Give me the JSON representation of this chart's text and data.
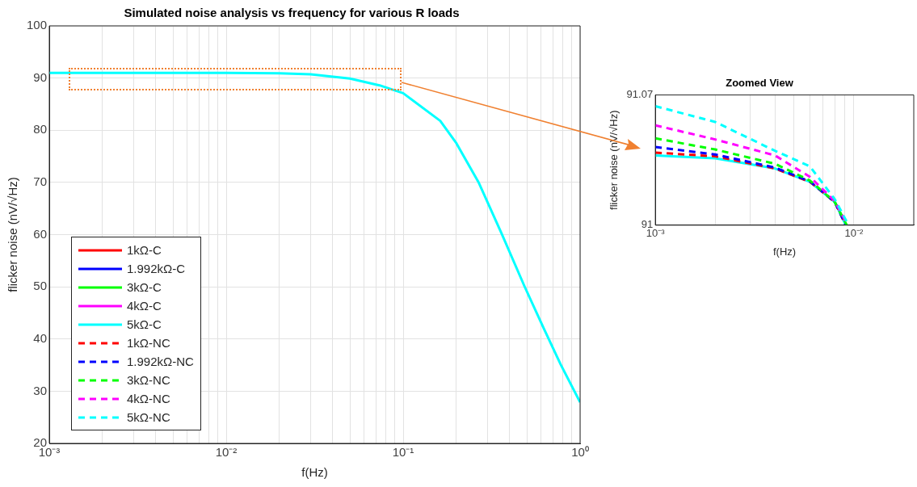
{
  "chart_data": [
    {
      "type": "line",
      "title": "Simulated noise analysis vs frequency for various R loads",
      "xlabel": "f(Hz)",
      "ylabel": "flicker noise (nV/√Hz)",
      "log": "x",
      "grid": true,
      "legend": "bottom left",
      "x": [
        0.001,
        0.002,
        0.005,
        0.01,
        0.02,
        0.03,
        0.05,
        0.0736,
        0.1,
        0.162,
        0.2,
        0.268,
        0.36,
        0.485,
        0.624,
        0.777,
        1
      ],
      "xlim": [
        0.001,
        1
      ],
      "xticks": [
        {
          "value": 0.001,
          "label": "10⁻³"
        },
        {
          "value": 0.002,
          "label": null
        },
        {
          "value": 0.003,
          "label": null
        },
        {
          "value": 0.004,
          "label": null
        },
        {
          "value": 0.005,
          "label": null
        },
        {
          "value": 0.006,
          "label": null
        },
        {
          "value": 0.007,
          "label": null
        },
        {
          "value": 0.008,
          "label": null
        },
        {
          "value": 0.009,
          "label": null
        },
        {
          "value": 0.01,
          "label": "10⁻²"
        },
        {
          "value": 0.02,
          "label": null
        },
        {
          "value": 0.03,
          "label": null
        },
        {
          "value": 0.04,
          "label": null
        },
        {
          "value": 0.05,
          "label": null
        },
        {
          "value": 0.06,
          "label": null
        },
        {
          "value": 0.07,
          "label": null
        },
        {
          "value": 0.08,
          "label": null
        },
        {
          "value": 0.09,
          "label": null
        },
        {
          "value": 0.1,
          "label": "10⁻¹"
        },
        {
          "value": 0.2,
          "label": null
        },
        {
          "value": 0.3,
          "label": null
        },
        {
          "value": 0.4,
          "label": null
        },
        {
          "value": 0.5,
          "label": null
        },
        {
          "value": 0.6,
          "label": null
        },
        {
          "value": 0.7,
          "label": null
        },
        {
          "value": 0.8,
          "label": null
        },
        {
          "value": 0.9,
          "label": null
        },
        {
          "value": 1,
          "label": "10⁰"
        }
      ],
      "ylim": [
        20,
        100
      ],
      "yticks": [
        20,
        30,
        40,
        50,
        60,
        70,
        80,
        90,
        100
      ],
      "series": [
        {
          "name": "1kΩ-C",
          "color": "#ff0000",
          "line_style": "solid",
          "values": [
            null,
            null,
            null,
            null,
            null,
            null,
            null,
            null,
            null,
            null,
            null,
            null,
            null,
            null,
            null,
            null,
            null
          ]
        },
        {
          "name": "1.992kΩ-C",
          "color": "#0000ff",
          "line_style": "solid",
          "values": [
            null,
            null,
            null,
            null,
            null,
            null,
            null,
            null,
            null,
            null,
            null,
            null,
            null,
            null,
            null,
            null,
            null
          ]
        },
        {
          "name": "3kΩ-C",
          "color": "#00ff00",
          "line_style": "solid",
          "values": [
            null,
            null,
            null,
            null,
            null,
            null,
            null,
            null,
            null,
            null,
            null,
            null,
            null,
            null,
            null,
            null,
            null
          ]
        },
        {
          "name": "4kΩ-C",
          "color": "#ff00ff",
          "line_style": "solid",
          "values": [
            null,
            null,
            null,
            null,
            null,
            null,
            null,
            null,
            null,
            null,
            null,
            null,
            null,
            null,
            null,
            null,
            null
          ]
        },
        {
          "name": "5kΩ-C",
          "color": "#00ffff",
          "line_style": "solid",
          "values": [
            91,
            91,
            91,
            91,
            90.9,
            90.7,
            89.9,
            88.6,
            87.1,
            81.8,
            77.5,
            69.9,
            60.2,
            50.1,
            42.0,
            35.1,
            27.9
          ]
        },
        {
          "name": "1kΩ-NC",
          "color": "#ff0000",
          "line_style": "dashed",
          "values": [
            null,
            null,
            null,
            null,
            null,
            null,
            null,
            null,
            null,
            null,
            null,
            null,
            null,
            null,
            null,
            null,
            null
          ]
        },
        {
          "name": "1.992kΩ-NC",
          "color": "#0000ff",
          "line_style": "dashed",
          "values": [
            null,
            null,
            null,
            null,
            null,
            null,
            null,
            null,
            null,
            null,
            null,
            null,
            null,
            null,
            null,
            null,
            null
          ]
        },
        {
          "name": "3kΩ-NC",
          "color": "#00ff00",
          "line_style": "dashed",
          "values": [
            null,
            null,
            null,
            null,
            null,
            null,
            null,
            null,
            null,
            null,
            null,
            null,
            null,
            null,
            null,
            null,
            null
          ]
        },
        {
          "name": "4kΩ-NC",
          "color": "#ff00ff",
          "line_style": "dashed",
          "values": [
            null,
            null,
            null,
            null,
            null,
            null,
            null,
            null,
            null,
            null,
            null,
            null,
            null,
            null,
            null,
            null,
            null
          ]
        },
        {
          "name": "5kΩ-NC",
          "color": "#00ffff",
          "line_style": "dashed",
          "values": [
            null,
            null,
            null,
            null,
            null,
            null,
            null,
            null,
            null,
            null,
            null,
            null,
            null,
            null,
            null,
            null,
            null
          ]
        }
      ]
    },
    {
      "type": "line",
      "title": "Zoomed View",
      "xlabel": "f(Hz)",
      "ylabel": "flicker noise (nV/√Hz)",
      "log": "x",
      "grid": "x",
      "xlim": [
        0.001,
        0.02
      ],
      "xticks": [
        {
          "value": 0.001,
          "label": "10⁻³"
        },
        {
          "value": 0.002,
          "label": null
        },
        {
          "value": 0.003,
          "label": null
        },
        {
          "value": 0.004,
          "label": null
        },
        {
          "value": 0.005,
          "label": null
        },
        {
          "value": 0.006,
          "label": null
        },
        {
          "value": 0.007,
          "label": null
        },
        {
          "value": 0.008,
          "label": null
        },
        {
          "value": 0.009,
          "label": null
        },
        {
          "value": 0.01,
          "label": "10⁻²"
        }
      ],
      "ylim": [
        91,
        91.07
      ],
      "yticks": [
        91,
        91.07
      ],
      "series": [
        {
          "color": "#00ffff",
          "line_style": "dashed",
          "x": [
            0.001,
            0.002,
            0.004,
            0.006,
            0.008,
            0.0094
          ],
          "values": [
            91.064,
            91.0555,
            91.04,
            91.0316,
            91.014,
            91
          ]
        },
        {
          "color": "#ff00ff",
          "line_style": "dashed",
          "x": [
            0.001,
            0.002,
            0.004,
            0.006,
            0.008,
            0.0093
          ],
          "values": [
            91.0537,
            91.0461,
            91.0375,
            91.026,
            91.013,
            91
          ]
        },
        {
          "color": "#00ff00",
          "line_style": "dashed",
          "x": [
            0.001,
            0.002,
            0.004,
            0.006,
            0.008,
            0.0092
          ],
          "values": [
            91.0467,
            91.0407,
            91.033,
            91.024,
            91.0125,
            91
          ]
        },
        {
          "color": "#0000ff",
          "line_style": "dashed",
          "x": [
            0.001,
            0.002,
            0.004,
            0.006,
            0.008,
            0.0091
          ],
          "values": [
            91.042,
            91.038,
            91.031,
            91.0235,
            91.0125,
            91
          ]
        },
        {
          "color": "#ff0000",
          "line_style": "dashed",
          "x": [
            0.001,
            0.002,
            0.004,
            0.006,
            0.008,
            0.0091
          ],
          "values": [
            91.039,
            91.037,
            91.0305,
            91.0233,
            91.0125,
            91
          ]
        },
        {
          "color": "#00ffff",
          "line_style": "solid",
          "x": [
            0.001,
            0.002,
            0.004,
            0.006,
            0.008,
            0.0091
          ],
          "values": [
            91.0375,
            91.036,
            91.0305,
            91.0233,
            91.0125,
            91
          ]
        }
      ]
    }
  ]
}
